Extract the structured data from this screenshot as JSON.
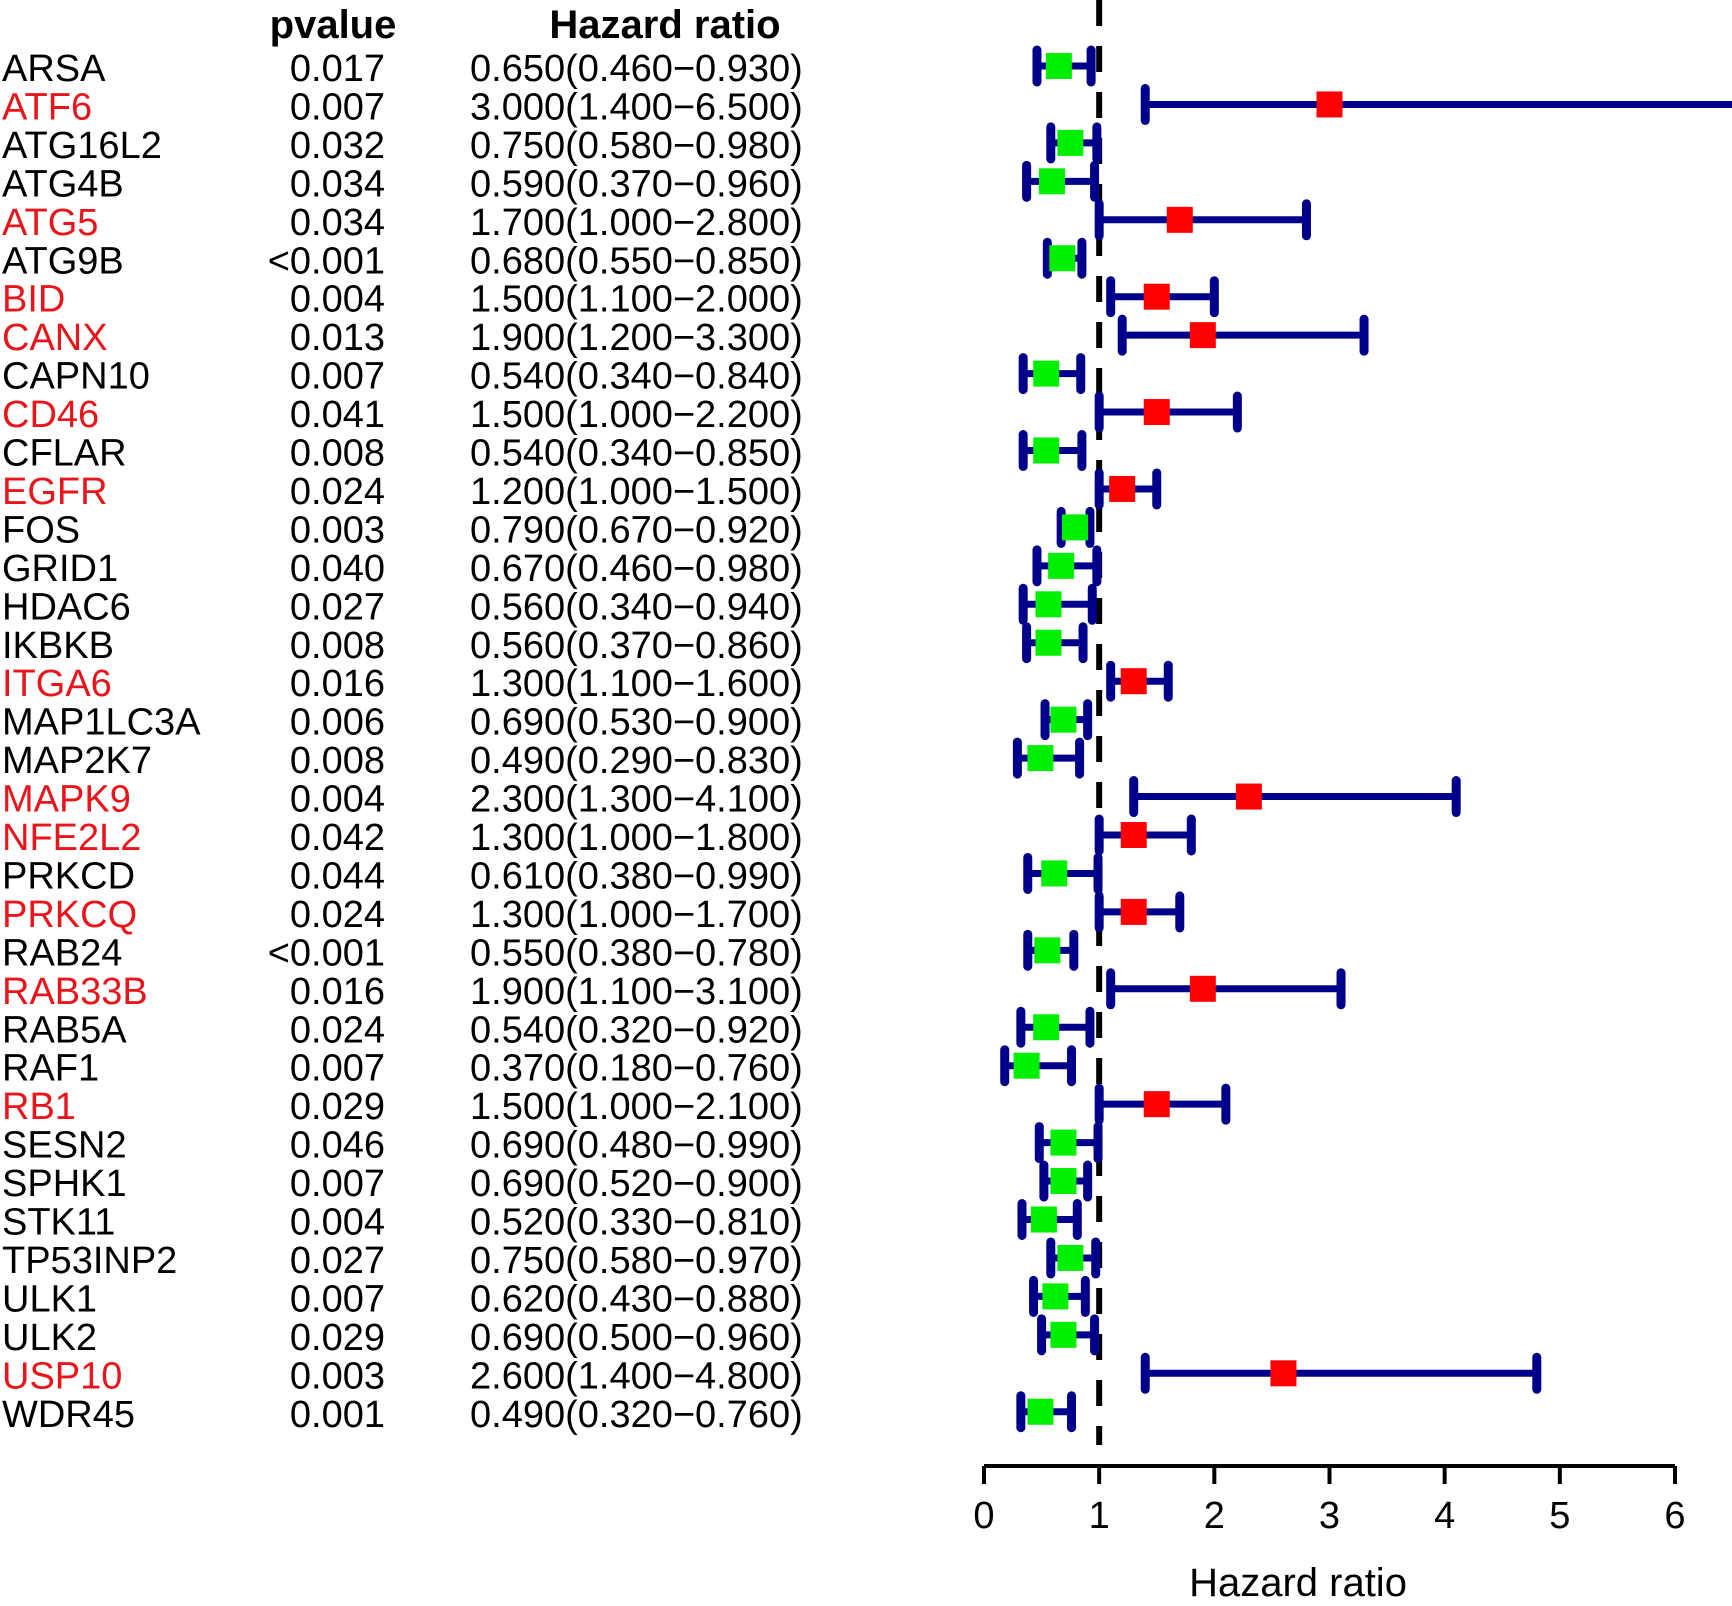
{
  "chart_data": {
    "type": "forest",
    "headers": {
      "pvalue": "pvalue",
      "hazard_ratio": "Hazard ratio"
    },
    "xlabel": "Hazard ratio",
    "xlim": [
      0,
      6
    ],
    "xticks": [
      "0",
      "1",
      "2",
      "3",
      "4",
      "5",
      "6"
    ],
    "reference_line": 1,
    "colors": {
      "risk_label": "#e8151b",
      "normal_label": "#000000",
      "risk_marker": "#ff0000",
      "protective_marker": "#00ee00",
      "ci_line": "#00008b",
      "ref_line": "#000000"
    },
    "rows": [
      {
        "gene": "ARSA",
        "pvalue": "0.017",
        "hr_text": "0.650(0.460−0.930)",
        "hr": 0.65,
        "low": 0.46,
        "high": 0.93,
        "risk": false
      },
      {
        "gene": "ATF6",
        "pvalue": "0.007",
        "hr_text": "3.000(1.400−6.500)",
        "hr": 3.0,
        "low": 1.4,
        "high": 6.5,
        "risk": true
      },
      {
        "gene": "ATG16L2",
        "pvalue": "0.032",
        "hr_text": "0.750(0.580−0.980)",
        "hr": 0.75,
        "low": 0.58,
        "high": 0.98,
        "risk": false
      },
      {
        "gene": "ATG4B",
        "pvalue": "0.034",
        "hr_text": "0.590(0.370−0.960)",
        "hr": 0.59,
        "low": 0.37,
        "high": 0.96,
        "risk": false
      },
      {
        "gene": "ATG5",
        "pvalue": "0.034",
        "hr_text": "1.700(1.000−2.800)",
        "hr": 1.7,
        "low": 1.0,
        "high": 2.8,
        "risk": true
      },
      {
        "gene": "ATG9B",
        "pvalue": "<0.001",
        "hr_text": "0.680(0.550−0.850)",
        "hr": 0.68,
        "low": 0.55,
        "high": 0.85,
        "risk": false
      },
      {
        "gene": "BID",
        "pvalue": "0.004",
        "hr_text": "1.500(1.100−2.000)",
        "hr": 1.5,
        "low": 1.1,
        "high": 2.0,
        "risk": true
      },
      {
        "gene": "CANX",
        "pvalue": "0.013",
        "hr_text": "1.900(1.200−3.300)",
        "hr": 1.9,
        "low": 1.2,
        "high": 3.3,
        "risk": true
      },
      {
        "gene": "CAPN10",
        "pvalue": "0.007",
        "hr_text": "0.540(0.340−0.840)",
        "hr": 0.54,
        "low": 0.34,
        "high": 0.84,
        "risk": false
      },
      {
        "gene": "CD46",
        "pvalue": "0.041",
        "hr_text": "1.500(1.000−2.200)",
        "hr": 1.5,
        "low": 1.0,
        "high": 2.2,
        "risk": true
      },
      {
        "gene": "CFLAR",
        "pvalue": "0.008",
        "hr_text": "0.540(0.340−0.850)",
        "hr": 0.54,
        "low": 0.34,
        "high": 0.85,
        "risk": false
      },
      {
        "gene": "EGFR",
        "pvalue": "0.024",
        "hr_text": "1.200(1.000−1.500)",
        "hr": 1.2,
        "low": 1.0,
        "high": 1.5,
        "risk": true
      },
      {
        "gene": "FOS",
        "pvalue": "0.003",
        "hr_text": "0.790(0.670−0.920)",
        "hr": 0.79,
        "low": 0.67,
        "high": 0.92,
        "risk": false
      },
      {
        "gene": "GRID1",
        "pvalue": "0.040",
        "hr_text": "0.670(0.460−0.980)",
        "hr": 0.67,
        "low": 0.46,
        "high": 0.98,
        "risk": false
      },
      {
        "gene": "HDAC6",
        "pvalue": "0.027",
        "hr_text": "0.560(0.340−0.940)",
        "hr": 0.56,
        "low": 0.34,
        "high": 0.94,
        "risk": false
      },
      {
        "gene": "IKBKB",
        "pvalue": "0.008",
        "hr_text": "0.560(0.370−0.860)",
        "hr": 0.56,
        "low": 0.37,
        "high": 0.86,
        "risk": false
      },
      {
        "gene": "ITGA6",
        "pvalue": "0.016",
        "hr_text": "1.300(1.100−1.600)",
        "hr": 1.3,
        "low": 1.1,
        "high": 1.6,
        "risk": true
      },
      {
        "gene": "MAP1LC3A",
        "pvalue": "0.006",
        "hr_text": "0.690(0.530−0.900)",
        "hr": 0.69,
        "low": 0.53,
        "high": 0.9,
        "risk": false
      },
      {
        "gene": "MAP2K7",
        "pvalue": "0.008",
        "hr_text": "0.490(0.290−0.830)",
        "hr": 0.49,
        "low": 0.29,
        "high": 0.83,
        "risk": false
      },
      {
        "gene": "MAPK9",
        "pvalue": "0.004",
        "hr_text": "2.300(1.300−4.100)",
        "hr": 2.3,
        "low": 1.3,
        "high": 4.1,
        "risk": true
      },
      {
        "gene": "NFE2L2",
        "pvalue": "0.042",
        "hr_text": "1.300(1.000−1.800)",
        "hr": 1.3,
        "low": 1.0,
        "high": 1.8,
        "risk": true
      },
      {
        "gene": "PRKCD",
        "pvalue": "0.044",
        "hr_text": "0.610(0.380−0.990)",
        "hr": 0.61,
        "low": 0.38,
        "high": 0.99,
        "risk": false
      },
      {
        "gene": "PRKCQ",
        "pvalue": "0.024",
        "hr_text": "1.300(1.000−1.700)",
        "hr": 1.3,
        "low": 1.0,
        "high": 1.7,
        "risk": true
      },
      {
        "gene": "RAB24",
        "pvalue": "<0.001",
        "hr_text": "0.550(0.380−0.780)",
        "hr": 0.55,
        "low": 0.38,
        "high": 0.78,
        "risk": false
      },
      {
        "gene": "RAB33B",
        "pvalue": "0.016",
        "hr_text": "1.900(1.100−3.100)",
        "hr": 1.9,
        "low": 1.1,
        "high": 3.1,
        "risk": true
      },
      {
        "gene": "RAB5A",
        "pvalue": "0.024",
        "hr_text": "0.540(0.320−0.920)",
        "hr": 0.54,
        "low": 0.32,
        "high": 0.92,
        "risk": false
      },
      {
        "gene": "RAF1",
        "pvalue": "0.007",
        "hr_text": "0.370(0.180−0.760)",
        "hr": 0.37,
        "low": 0.18,
        "high": 0.76,
        "risk": false
      },
      {
        "gene": "RB1",
        "pvalue": "0.029",
        "hr_text": "1.500(1.000−2.100)",
        "hr": 1.5,
        "low": 1.0,
        "high": 2.1,
        "risk": true
      },
      {
        "gene": "SESN2",
        "pvalue": "0.046",
        "hr_text": "0.690(0.480−0.990)",
        "hr": 0.69,
        "low": 0.48,
        "high": 0.99,
        "risk": false
      },
      {
        "gene": "SPHK1",
        "pvalue": "0.007",
        "hr_text": "0.690(0.520−0.900)",
        "hr": 0.69,
        "low": 0.52,
        "high": 0.9,
        "risk": false
      },
      {
        "gene": "STK11",
        "pvalue": "0.004",
        "hr_text": "0.520(0.330−0.810)",
        "hr": 0.52,
        "low": 0.33,
        "high": 0.81,
        "risk": false
      },
      {
        "gene": "TP53INP2",
        "pvalue": "0.027",
        "hr_text": "0.750(0.580−0.970)",
        "hr": 0.75,
        "low": 0.58,
        "high": 0.97,
        "risk": false
      },
      {
        "gene": "ULK1",
        "pvalue": "0.007",
        "hr_text": "0.620(0.430−0.880)",
        "hr": 0.62,
        "low": 0.43,
        "high": 0.88,
        "risk": false
      },
      {
        "gene": "ULK2",
        "pvalue": "0.029",
        "hr_text": "0.690(0.500−0.960)",
        "hr": 0.69,
        "low": 0.5,
        "high": 0.96,
        "risk": false
      },
      {
        "gene": "USP10",
        "pvalue": "0.003",
        "hr_text": "2.600(1.400−4.800)",
        "hr": 2.6,
        "low": 1.4,
        "high": 4.8,
        "risk": true
      },
      {
        "gene": "WDR45",
        "pvalue": "0.001",
        "hr_text": "0.490(0.320−0.760)",
        "hr": 0.49,
        "low": 0.32,
        "high": 0.76,
        "risk": false
      }
    ]
  }
}
